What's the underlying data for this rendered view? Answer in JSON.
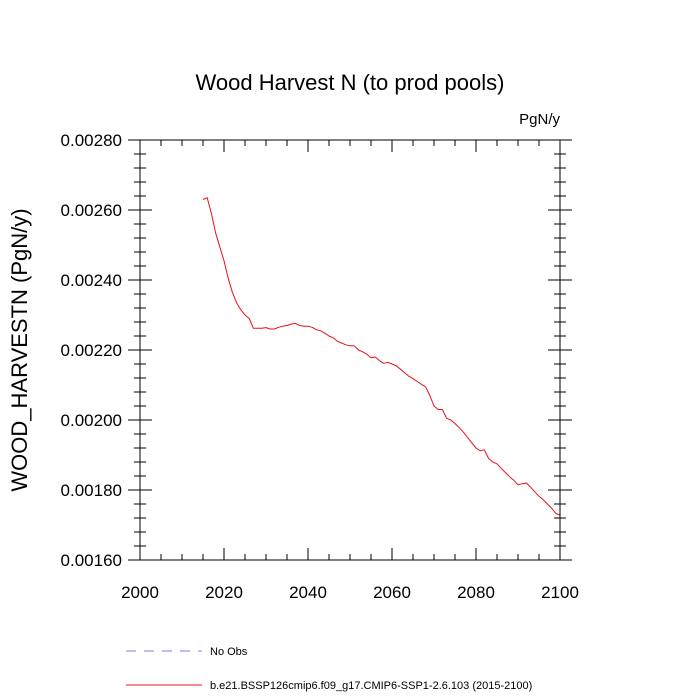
{
  "chart_data": {
    "type": "line",
    "title": "Wood Harvest N (to prod pools)",
    "units": "PgN/y",
    "xlabel": "",
    "ylabel": "WOOD_HARVESTN  (PgN/y)",
    "xlim": [
      2000,
      2100
    ],
    "ylim": [
      0.0016,
      0.0028
    ],
    "x_ticks": [
      2000,
      2020,
      2040,
      2060,
      2080,
      2100
    ],
    "x_tick_labels": [
      "2000",
      "2020",
      "2040",
      "2060",
      "2080",
      "2100"
    ],
    "y_ticks": [
      0.0016,
      0.0018,
      0.002,
      0.0022,
      0.0024,
      0.0026,
      0.0028
    ],
    "y_tick_labels": [
      "0.00160",
      "0.00180",
      "0.00200",
      "0.00220",
      "0.00240",
      "0.00260",
      "0.00280"
    ],
    "legend": [
      {
        "name": "No Obs",
        "style": "dashed",
        "color": "#7b7bdc"
      },
      {
        "name": "b.e21.BSSP126cmip6.f09_g17.CMIP6-SSP1-2.6.103 (2015-2100)",
        "style": "solid",
        "color": "#e8101c"
      }
    ],
    "series": [
      {
        "name": "b.e21.BSSP126cmip6.f09_g17.CMIP6-SSP1-2.6.103 (2015-2100)",
        "color": "#e8101c",
        "x": [
          2015,
          2016,
          2017,
          2018,
          2019,
          2020,
          2021,
          2022,
          2023,
          2024,
          2025,
          2026,
          2027,
          2028,
          2029,
          2030,
          2031,
          2032,
          2033,
          2034,
          2035,
          2036,
          2037,
          2038,
          2039,
          2040,
          2041,
          2042,
          2043,
          2044,
          2045,
          2046,
          2047,
          2048,
          2049,
          2050,
          2051,
          2052,
          2053,
          2054,
          2055,
          2056,
          2057,
          2058,
          2059,
          2060,
          2061,
          2062,
          2063,
          2064,
          2065,
          2066,
          2067,
          2068,
          2069,
          2070,
          2071,
          2072,
          2073,
          2074,
          2075,
          2076,
          2077,
          2078,
          2079,
          2080,
          2081,
          2082,
          2083,
          2084,
          2085,
          2086,
          2087,
          2088,
          2089,
          2090,
          2091,
          2092,
          2093,
          2094,
          2095,
          2096,
          2097,
          2098,
          2099,
          2100
        ],
        "values": [
          0.00263,
          0.002635,
          0.00259,
          0.002535,
          0.002495,
          0.002455,
          0.002405,
          0.002365,
          0.002335,
          0.002315,
          0.0023,
          0.00229,
          0.002262,
          0.002262,
          0.002262,
          0.002264,
          0.00226,
          0.00226,
          0.002265,
          0.002268,
          0.00227,
          0.002274,
          0.002276,
          0.00227,
          0.002268,
          0.002268,
          0.002265,
          0.002258,
          0.002255,
          0.002248,
          0.00224,
          0.002235,
          0.002225,
          0.00222,
          0.002215,
          0.002212,
          0.002212,
          0.0022,
          0.002195,
          0.002188,
          0.002178,
          0.00218,
          0.00217,
          0.002162,
          0.002165,
          0.00216,
          0.002155,
          0.002145,
          0.002135,
          0.002125,
          0.002118,
          0.00211,
          0.002102,
          0.002095,
          0.00207,
          0.00204,
          0.00203,
          0.00203,
          0.002005,
          0.002,
          0.00199,
          0.001978,
          0.001965,
          0.00195,
          0.001935,
          0.00192,
          0.001912,
          0.001915,
          0.00189,
          0.00188,
          0.001875,
          0.001862,
          0.00185,
          0.001838,
          0.001828,
          0.001815,
          0.001818,
          0.00182,
          0.001808,
          0.001795,
          0.001782,
          0.001772,
          0.00176,
          0.001748,
          0.001733,
          0.001728
        ]
      }
    ]
  }
}
